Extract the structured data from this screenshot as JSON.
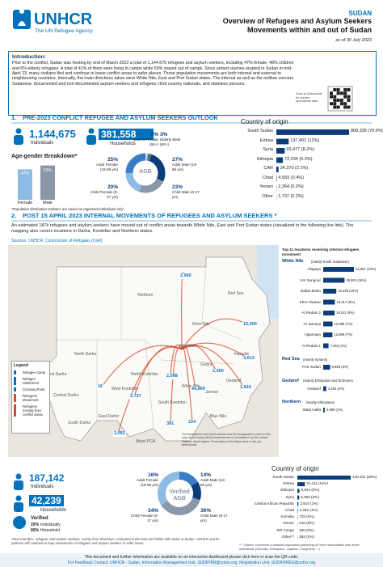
{
  "header": {
    "logo": "UNHCR",
    "logo_sub": "The UN Refugee Agency",
    "country": "SUDAN",
    "title": "Overview of Refugees and Asylum Seekers Movements within and out of Sudan",
    "date": "as of 30 July 2023"
  },
  "intro": {
    "heading": "Introduction:",
    "text": "Prior to the conflict, Sudan was hosting by end of March 2023 a total of 1,144,675 refugees and asylum seekers, including 47% female, 48% children and 6% elderly refugees. A total of 41% of them were living in camps while 59% stayed out of camps. Since armed clashes erupted in Sudan in mid-April 23, many civilians fled and continue to leave conflict areas to safer places. These population movements are both internal and external to neighbouring countries. Internally, the main directions taken were White Nile, East and Port Sudan states. The internal as well as the outflow concern Sudanese, documented and non-documented asylum seekers and refugees, third country nationals, and stateless persons."
  },
  "qr_note": "Scan to Data portal for current operational data",
  "section1": {
    "number": "1.",
    "heading": "PRE-2023 CONFLICT REFUGEE AND ASYLUM SEEKERS OUTLOOK",
    "individuals": "1,144,675",
    "individuals_label": "Individuals",
    "households": "381,558",
    "households_label": "Households",
    "age_gender": {
      "title": "Age-gender Breakdown*",
      "center": "AGB",
      "segments": [
        {
          "value": 2,
          "label": "2%",
          "name": "Elderly Female (60+)"
        },
        {
          "value": 3,
          "label": "3%",
          "name": "Elderly Male (60+)"
        },
        {
          "value": 27,
          "label": "27%",
          "name": "Adult Male (18-59 yrs)"
        },
        {
          "value": 23,
          "label": "23%",
          "name": "Child Male (0-17 yrs)"
        },
        {
          "value": 20,
          "label": "20%",
          "name": "Child Female (0-17 yrs)"
        },
        {
          "value": 25,
          "label": "25%",
          "name": "Adult Female (18-59 yrs)"
        }
      ],
      "sex": {
        "categories": [
          "Female",
          "Male"
        ],
        "values": [
          47,
          53
        ],
        "value_labels": [
          "47%",
          "53%"
        ]
      }
    },
    "footnote": "*Population distribution statistics are based on registered individuals only",
    "origin": {
      "title": "Country of origin",
      "categories": [
        "South Sudan",
        "Eritrea",
        "Syria",
        "Ethiopia",
        "CAR",
        "Chad",
        "Yemen",
        "Other"
      ],
      "values": [
        808336,
        137402,
        93477,
        72234,
        24370,
        4655,
        2364,
        1737
      ],
      "value_labels": [
        "808,336 (70.6%)",
        "137,402 (12%)",
        "93,477 (8.2%)",
        "72,234 (6.3%)",
        "24,370 (2.1%)",
        "4,655 (0.4%)",
        "2,364 (0.2%)",
        "1,737 (0.2%)"
      ]
    }
  },
  "section2": {
    "number": "2.",
    "heading": "POST 15 APRIL 2023 INTERNAL MOVEMENTS OF REFUGEES AND ASYLUM SEEKERS *",
    "text": "An estimated 187k refugees and asylum seekers have moved out of conflict areas towards White Nile, East and Port Sudan states (visualized in the following live link). The mapping also covers locations in Darfur, Kordofan and Northern states.",
    "source": "Sources: UNHCR, Commission of Refugees (CoR)"
  },
  "map": {
    "states": [
      "Northern",
      "Red Sea",
      "River Nile",
      "North Darfur",
      "North Kordofan",
      "Khartoum",
      "Kassala",
      "Gezira",
      "Gedaref",
      "West Darfur",
      "Central Darfur",
      "South Darfur",
      "East Darfur",
      "West Kordofan",
      "South Kordofan",
      "White Nile",
      "Sennar",
      "Blue Nile",
      "Abyei PCA"
    ],
    "flows": [
      "2,960",
      "15,000",
      "3,013",
      "1,624",
      "2,360",
      "2,098",
      "2,737",
      "44,869",
      "16",
      "3,092",
      "391",
      "224"
    ],
    "legend": {
      "title": "Legend",
      "items": [
        "Refugee Camp",
        "Refugee Settlement",
        "Crossing Point",
        "Refugees Movement",
        "Refugees moving from conflict areas"
      ]
    },
    "disclaimer": "The boundaries and names shown and the designations used on this map do not imply official endorsement or acceptance by the United Nations. Abyei region: Final status of the Abyei area is not yet determined."
  },
  "locations": {
    "title": "Top 11 locations receiving internal refugees movement",
    "groups": [
      {
        "name": "White Nile",
        "note": "(mainly South Sudanese)",
        "items": [
          {
            "name": "Alagaya",
            "value": 43061,
            "label": "43,061 (23%)"
          },
          {
            "name": "Um Sangour",
            "value": 29861,
            "label": "29,861 (16%)"
          },
          {
            "name": "Dabat Bosin",
            "value": 18340,
            "label": "18,340 (10%)"
          },
          {
            "name": "Khor Alwarar",
            "value": 16317,
            "label": "16,317 (9%)"
          },
          {
            "name": "Al Redais 2",
            "value": 16011,
            "label": "16,011 (9%)"
          },
          {
            "name": "Al Jameya",
            "value": 13098,
            "label": "13,098 (7%)"
          },
          {
            "name": "Algamaya",
            "value": 12895,
            "label": "12,895 (7%)"
          },
          {
            "name": "Al Redais 1",
            "value": 7462,
            "label": "7,462 (4%)"
          }
        ]
      },
      {
        "name": "Red Sea",
        "note": "(mainly Syrians)",
        "items": [
          {
            "name": "Port Sudan",
            "value": 9688,
            "label": "9,688 (5%)"
          }
        ]
      },
      {
        "name": "Gedaref",
        "note": "(mainly Ethiopians and Eritreans)",
        "items": [
          {
            "name": "Gedaref",
            "value": 4254,
            "label": "4,254 (2%)"
          }
        ]
      },
      {
        "name": "Northern",
        "note": "(mainly Ethiopians)",
        "items": [
          {
            "name": "Wadi Halfa",
            "value": 2089,
            "label": "2,089 (1%)"
          }
        ]
      }
    ]
  },
  "section3": {
    "individuals": "187,142",
    "individuals_label": "Individuals",
    "households": "42,239",
    "households_label": "Households",
    "verified": "Verified",
    "ind_pct": "20%",
    "ind_label": "Individually",
    "hh_pct": "80%",
    "hh_label": "Household",
    "agb": {
      "center": "Verified AGB",
      "segments": [
        {
          "value": 16,
          "label": "16%",
          "name": "Adult Female (18-59 yrs)"
        },
        {
          "value": 14,
          "label": "14%",
          "name": "Adult Male (18-59 yrs)"
        },
        {
          "value": 36,
          "label": "36%",
          "name": "Child Male (0-17 yrs)"
        },
        {
          "value": 34,
          "label": "34%",
          "name": "Child Female (0-17 yrs)"
        }
      ]
    },
    "origin": {
      "title": "Country of origin",
      "categories": [
        "South Sudan",
        "Eritrea",
        "Ethiopia",
        "Syria",
        "Central African Republic",
        "Chad",
        "Somalia",
        "Yemen",
        "DR Congo",
        "Other**"
      ],
      "values": [
        149101,
        21111,
        5944,
        5083,
        2910,
        1262,
        733,
        416,
        190,
        392
      ],
      "value_labels": [
        "149,101 (80%)",
        "21,111 (11%)",
        "5,944 (3%)",
        "5,083 (3%)",
        "2,910 (2%)",
        "1,262 (1%)",
        "733 (0%)",
        "416 (0%)",
        "190 (0%)",
        "392 (0%)"
      ]
    },
    "note": "*New transfers, refugees and asylum seekers, mainly from Khartoum, relocated to the East and White Nile states & Sudan. UNHCR and its partners will continue to map movements of refugees and asylum seekers in safer areas.",
    "others_note": "** \"Others\" represent a detailed population gathering of more nationalities with fewer individuals (Somalia, Ethiopians, Uganda, Congolese ...)"
  },
  "footer": {
    "line1": "This document and further information are available on an interactive dashboard please click here or scan the QR code.",
    "line2": "For Feedback Contact: UNHCR - Sudan, Information Management Unit, SUDKHIM@unhcr.org, Registration Unit, SUDKHREG@unhcr.org"
  }
}
